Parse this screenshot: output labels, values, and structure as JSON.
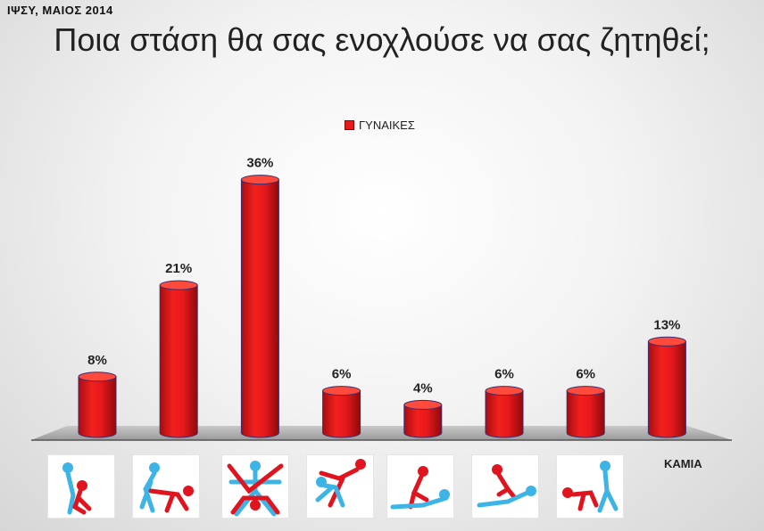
{
  "header": {
    "source_note": "ΙΨΣΥ, ΜΑΙΟΣ 2014"
  },
  "chart_data": {
    "type": "bar",
    "title": "Ποια στάση θα σας ενοχλούσε να σας ζητηθεί;",
    "categories": [
      "",
      "",
      "",
      "",
      "",
      "",
      "",
      "ΚΑΜΙΑ"
    ],
    "category_icons": [
      "position-1-icon",
      "position-2-icon",
      "position-3-icon",
      "position-4-icon",
      "position-5-icon",
      "position-6-icon",
      "position-7-icon"
    ],
    "series": [
      {
        "name": "ΓΥΝΑΙΚΕΣ",
        "values": [
          8,
          21,
          36,
          6,
          4,
          6,
          6,
          13
        ]
      }
    ],
    "data_labels": [
      "8%",
      "21%",
      "36%",
      "6%",
      "4%",
      "6%",
      "6%",
      "13%"
    ],
    "ylim": [
      0,
      40
    ],
    "legend_position": "top-center",
    "grid": false,
    "colors": {
      "bar": "#e8191c",
      "bar_top": "#ff4a3c",
      "bar_edge": "#3a2e6e",
      "icon_blue": "#3cb4e6",
      "icon_red": "#e0141e"
    }
  }
}
